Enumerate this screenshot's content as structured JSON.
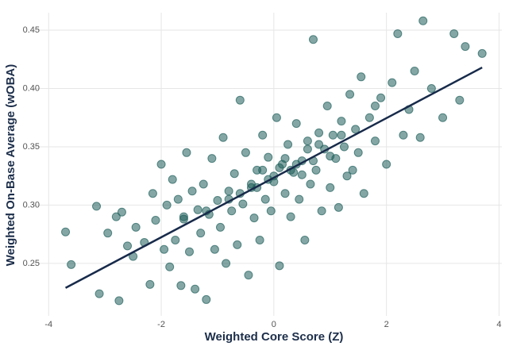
{
  "chart_data": {
    "type": "scatter",
    "xlabel": "Weighted Core Score (Z)",
    "ylabel": "Weighted On-Base Average (wOBA)",
    "xlim": [
      -4.3,
      4.05
    ],
    "ylim": [
      0.205,
      0.465
    ],
    "xticks": [
      -4,
      -2,
      0,
      2,
      4
    ],
    "yticks": [
      0.25,
      0.3,
      {
        "value": 0.3,
        "label": "0.30"
      },
      0.35,
      {
        "value": 0.4,
        "label": "0.40"
      },
      0.45
    ],
    "grid": true,
    "color": "#1f5f5b",
    "line_color": "#172a4a",
    "x": [
      -3.7,
      -3.6,
      -3.15,
      -3.1,
      -2.95,
      -2.8,
      -2.75,
      -2.7,
      -2.6,
      -2.5,
      -2.45,
      -2.3,
      -2.2,
      -2.15,
      -2.1,
      -2.0,
      -1.95,
      -1.9,
      -1.85,
      -1.8,
      -1.75,
      -1.7,
      -1.65,
      -1.6,
      -1.55,
      -1.5,
      -1.45,
      -1.4,
      -1.35,
      -1.3,
      -1.25,
      -1.2,
      -1.15,
      -1.1,
      -1.05,
      -1.0,
      -0.95,
      -0.9,
      -0.85,
      -0.8,
      -0.75,
      -0.7,
      -0.65,
      -0.6,
      -0.55,
      -0.5,
      -0.45,
      -0.4,
      -0.35,
      -0.3,
      -0.25,
      -0.2,
      -0.15,
      -0.1,
      -0.05,
      0,
      0.05,
      0.1,
      0.15,
      0.2,
      0.25,
      0.3,
      0.35,
      0.4,
      0.45,
      0.5,
      0.55,
      0.6,
      0.65,
      0.7,
      0.75,
      0.8,
      0.85,
      0.9,
      0.95,
      1.0,
      1.05,
      1.1,
      1.15,
      1.2,
      1.25,
      1.3,
      1.35,
      1.4,
      1.45,
      1.5,
      1.55,
      1.6,
      1.7,
      1.8,
      1.9,
      2.0,
      2.1,
      2.2,
      2.3,
      2.4,
      2.5,
      2.6,
      2.65,
      2.8,
      3.0,
      3.2,
      3.3,
      3.4,
      3.7,
      -1.2,
      -0.8,
      -0.4,
      -0.2,
      0,
      0.2,
      0.4,
      0.6,
      0.8,
      1.0,
      -0.6,
      0.3,
      -0.1,
      0.5,
      1.2,
      -1.6,
      1.8,
      -0.3,
      0.1,
      0.7
    ],
    "y": [
      0.277,
      0.249,
      0.299,
      0.224,
      0.276,
      0.29,
      0.218,
      0.294,
      0.265,
      0.256,
      0.281,
      0.268,
      0.232,
      0.31,
      0.287,
      0.335,
      0.262,
      0.3,
      0.247,
      0.322,
      0.27,
      0.305,
      0.231,
      0.288,
      0.345,
      0.26,
      0.312,
      0.228,
      0.296,
      0.276,
      0.318,
      0.219,
      0.292,
      0.34,
      0.262,
      0.304,
      0.281,
      0.358,
      0.25,
      0.312,
      0.295,
      0.327,
      0.266,
      0.39,
      0.301,
      0.345,
      0.24,
      0.318,
      0.289,
      0.33,
      0.27,
      0.36,
      0.305,
      0.341,
      0.295,
      0.32,
      0.375,
      0.248,
      0.335,
      0.31,
      0.352,
      0.29,
      0.328,
      0.37,
      0.305,
      0.338,
      0.27,
      0.355,
      0.318,
      0.442,
      0.33,
      0.362,
      0.295,
      0.348,
      0.385,
      0.315,
      0.36,
      0.34,
      0.298,
      0.372,
      0.35,
      0.325,
      0.395,
      0.33,
      0.365,
      0.345,
      0.41,
      0.31,
      0.375,
      0.355,
      0.392,
      0.335,
      0.405,
      0.447,
      0.36,
      0.382,
      0.415,
      0.358,
      0.458,
      0.4,
      0.375,
      0.447,
      0.39,
      0.436,
      0.43,
      0.295,
      0.305,
      0.315,
      0.33,
      0.325,
      0.34,
      0.335,
      0.348,
      0.352,
      0.342,
      0.31,
      0.33,
      0.322,
      0.326,
      0.36,
      0.29,
      0.385,
      0.315,
      0.332,
      0.338
    ],
    "trend_line": {
      "x": [
        -3.7,
        3.7
      ],
      "y": [
        0.229,
        0.418
      ]
    }
  }
}
